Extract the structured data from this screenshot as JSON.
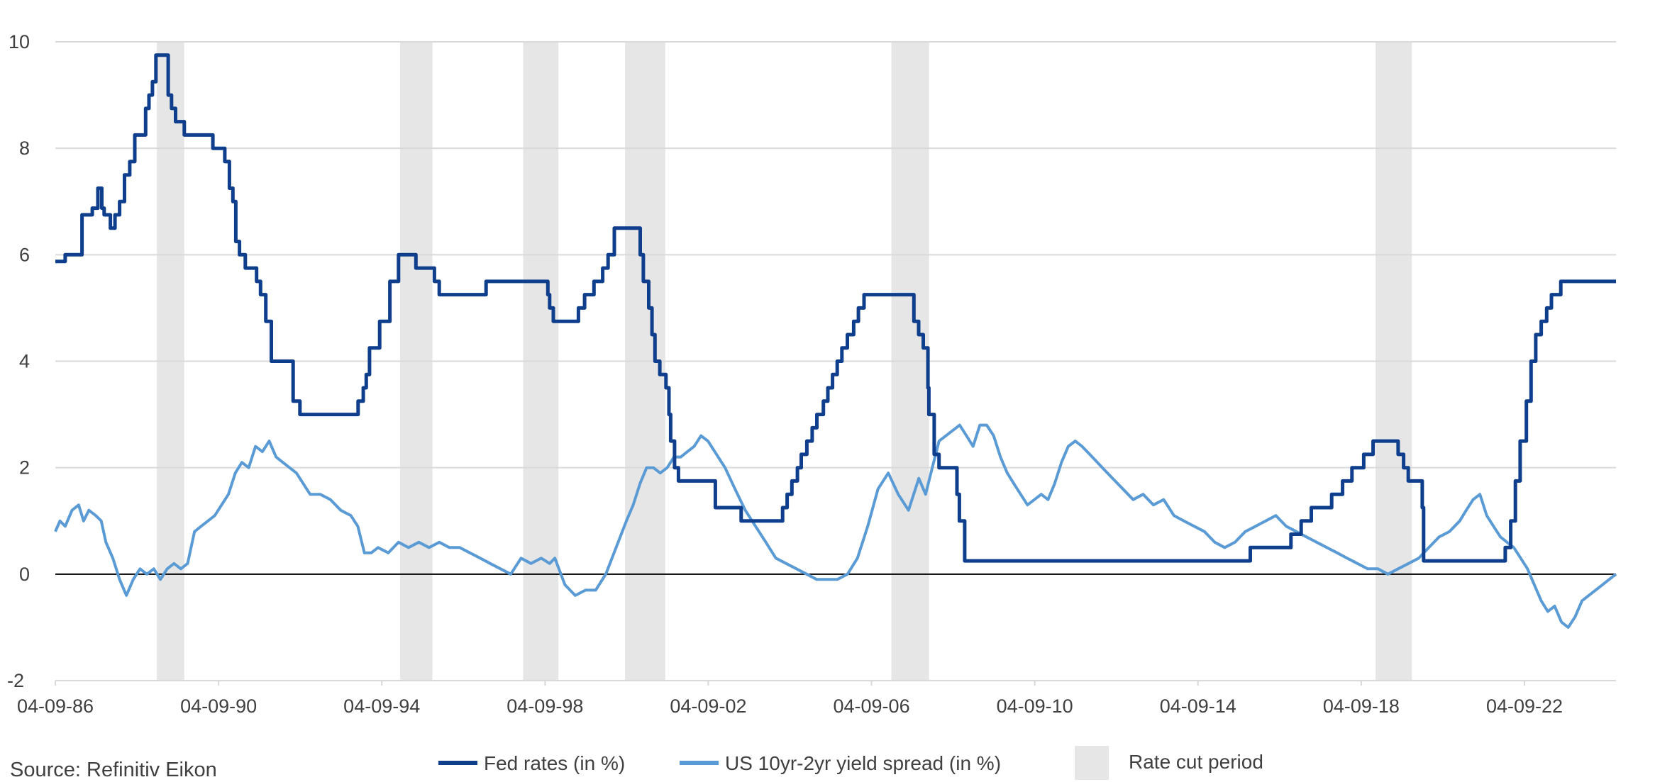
{
  "chart_data": {
    "type": "line",
    "title": "",
    "xlabel": "",
    "ylabel": "",
    "ylim": [
      -2,
      10
    ],
    "yticks": [
      10,
      8,
      6,
      4,
      2,
      0,
      -2
    ],
    "xlim": [
      "1986-09-04",
      "2024-12-01"
    ],
    "xticks": [
      "1986-09-04",
      "1990-09-04",
      "1994-09-04",
      "1998-09-04",
      "2002-09-04",
      "2006-09-04",
      "2010-09-04",
      "2014-09-04",
      "2018-09-04",
      "2022-09-04"
    ],
    "xtick_labels": [
      "04-09-86",
      "04-09-90",
      "04-09-94",
      "04-09-98",
      "04-09-02",
      "04-09-06",
      "04-09-10",
      "04-09-14",
      "04-09-18",
      "04-09-22"
    ],
    "grid": "horizontal",
    "legend_position": "bottom",
    "rate_cut_periods": [
      [
        "1989-03-01",
        "1989-11-01"
      ],
      [
        "1995-02-15",
        "1995-12-01"
      ],
      [
        "1998-02-20",
        "1999-01-01"
      ],
      [
        "2000-08-20",
        "2001-08-15"
      ],
      [
        "2007-03-01",
        "2008-02-01"
      ],
      [
        "2019-01-10",
        "2019-12-01"
      ]
    ],
    "series": [
      {
        "name": "Fed rates (in %)",
        "color": "#0f3f8c",
        "style": "step",
        "x": [
          "1986-09-04",
          "1986-12-01",
          "1987-05-01",
          "1987-08-01",
          "1987-09-20",
          "1987-10-25",
          "1987-11-15",
          "1988-01-10",
          "1988-02-20",
          "1988-04-01",
          "1988-05-15",
          "1988-07-01",
          "1988-08-15",
          "1988-10-01",
          "1988-11-20",
          "1988-12-20",
          "1989-01-20",
          "1989-02-20",
          "1989-03-01",
          "1989-06-10",
          "1989-07-10",
          "1989-08-15",
          "1989-10-15",
          "1989-11-01",
          "1989-12-15",
          "1990-07-15",
          "1990-10-30",
          "1990-12-10",
          "1991-01-10",
          "1991-02-05",
          "1991-03-10",
          "1991-05-01",
          "1991-08-10",
          "1991-09-15",
          "1991-11-01",
          "1991-12-20",
          "1992-07-02",
          "1992-09-01",
          "1994-02-04",
          "1994-03-22",
          "1994-04-18",
          "1994-05-17",
          "1994-08-16",
          "1994-11-15",
          "1995-02-01",
          "1995-07-06",
          "1995-12-19",
          "1996-01-31",
          "1997-03-25",
          "1998-09-29",
          "1998-10-15",
          "1998-11-17",
          "1999-06-30",
          "1999-08-24",
          "1999-11-16",
          "2000-02-02",
          "2000-03-21",
          "2000-05-16",
          "2001-01-03",
          "2001-01-31",
          "2001-03-20",
          "2001-04-18",
          "2001-05-15",
          "2001-06-27",
          "2001-08-21",
          "2001-09-17",
          "2001-10-02",
          "2001-11-06",
          "2001-12-11",
          "2002-11-06",
          "2003-06-25",
          "2004-06-30",
          "2004-08-10",
          "2004-09-21",
          "2004-11-10",
          "2004-12-14",
          "2005-02-02",
          "2005-03-22",
          "2005-05-03",
          "2005-06-30",
          "2005-08-09",
          "2005-09-20",
          "2005-11-01",
          "2005-12-13",
          "2006-01-31",
          "2006-03-28",
          "2006-05-10",
          "2006-06-29",
          "2007-09-18",
          "2007-10-31",
          "2007-12-11",
          "2008-01-22",
          "2008-01-30",
          "2008-03-18",
          "2008-04-30",
          "2008-10-08",
          "2008-10-29",
          "2008-12-16",
          "2015-12-16",
          "2016-12-14",
          "2017-03-15",
          "2017-06-14",
          "2017-12-13",
          "2018-03-21",
          "2018-06-13",
          "2018-09-26",
          "2018-12-19",
          "2019-07-31",
          "2019-09-18",
          "2019-10-30",
          "2020-03-03",
          "2020-03-15",
          "2022-03-16",
          "2022-05-04",
          "2022-06-15",
          "2022-07-27",
          "2022-09-21",
          "2022-11-02",
          "2022-12-14",
          "2023-02-01",
          "2023-03-22",
          "2023-05-03",
          "2023-07-26",
          "2024-12-01"
        ],
        "y": [
          5.875,
          6.0,
          6.75,
          6.875,
          7.25,
          6.875,
          6.75,
          6.5,
          6.75,
          7.0,
          7.5,
          7.75,
          8.25,
          8.25,
          8.75,
          9.0,
          9.25,
          9.75,
          9.75,
          9.0,
          8.75,
          8.5,
          8.5,
          8.25,
          8.25,
          8.0,
          7.75,
          7.25,
          7.0,
          6.25,
          6.0,
          5.75,
          5.5,
          5.25,
          4.75,
          4.0,
          3.25,
          3.0,
          3.25,
          3.5,
          3.75,
          4.25,
          4.75,
          5.5,
          6.0,
          5.75,
          5.5,
          5.25,
          5.5,
          5.25,
          5.0,
          4.75,
          5.0,
          5.25,
          5.5,
          5.75,
          6.0,
          6.5,
          6.0,
          5.5,
          5.0,
          4.5,
          4.0,
          3.75,
          3.5,
          3.0,
          2.5,
          2.0,
          1.75,
          1.25,
          1.0,
          1.25,
          1.5,
          1.75,
          2.0,
          2.25,
          2.5,
          2.75,
          3.0,
          3.25,
          3.5,
          3.75,
          4.0,
          4.25,
          4.5,
          4.75,
          5.0,
          5.25,
          4.75,
          4.5,
          4.25,
          3.5,
          3.0,
          2.25,
          2.0,
          1.5,
          1.0,
          0.25,
          0.5,
          0.75,
          1.0,
          1.25,
          1.5,
          1.75,
          2.0,
          2.25,
          2.5,
          2.25,
          2.0,
          1.75,
          1.25,
          0.25,
          0.5,
          1.0,
          1.75,
          2.5,
          3.25,
          4.0,
          4.5,
          4.75,
          5.0,
          5.25,
          5.5,
          5.5
        ]
      },
      {
        "name": "US 10yr-2yr yield spread (in %)",
        "color": "#5b9bd5",
        "style": "line",
        "x": [
          "1986-09-04",
          "1986-10-15",
          "1986-12-01",
          "1987-02-01",
          "1987-04-01",
          "1987-05-15",
          "1987-07-01",
          "1987-09-01",
          "1987-10-20",
          "1987-12-01",
          "1988-02-01",
          "1988-04-01",
          "1988-06-01",
          "1988-08-01",
          "1988-10-01",
          "1988-12-01",
          "1989-02-01",
          "1989-04-01",
          "1989-06-01",
          "1989-08-01",
          "1989-10-01",
          "1989-12-01",
          "1990-02-01",
          "1990-04-01",
          "1990-06-01",
          "1990-08-01",
          "1990-10-01",
          "1990-12-01",
          "1991-02-01",
          "1991-04-01",
          "1991-06-01",
          "1991-08-01",
          "1991-10-01",
          "1991-12-01",
          "1992-02-01",
          "1992-04-01",
          "1992-06-01",
          "1992-08-01",
          "1992-10-01",
          "1992-12-01",
          "1993-03-01",
          "1993-06-01",
          "1993-09-01",
          "1993-12-01",
          "1994-02-01",
          "1994-04-01",
          "1994-06-01",
          "1994-08-01",
          "1994-11-01",
          "1995-02-01",
          "1995-05-01",
          "1995-08-01",
          "1995-11-01",
          "1996-02-01",
          "1996-05-01",
          "1996-08-01",
          "1996-11-01",
          "1997-02-01",
          "1997-05-01",
          "1997-08-01",
          "1997-11-01",
          "1998-02-01",
          "1998-05-01",
          "1998-08-01",
          "1998-10-15",
          "1998-12-01",
          "1999-03-01",
          "1999-06-01",
          "1999-09-01",
          "1999-12-01",
          "2000-03-01",
          "2000-06-01",
          "2000-09-01",
          "2000-11-01",
          "2001-01-01",
          "2001-03-01",
          "2001-05-01",
          "2001-07-01",
          "2001-09-01",
          "2001-11-01",
          "2002-01-01",
          "2002-03-01",
          "2002-05-01",
          "2002-07-01",
          "2002-09-01",
          "2002-11-01",
          "2003-02-01",
          "2003-05-01",
          "2003-08-01",
          "2003-11-01",
          "2004-02-01",
          "2004-05-01",
          "2004-08-01",
          "2004-11-01",
          "2005-02-01",
          "2005-05-01",
          "2005-08-01",
          "2005-11-01",
          "2006-02-01",
          "2006-05-01",
          "2006-08-01",
          "2006-11-01",
          "2007-02-01",
          "2007-05-01",
          "2007-08-01",
          "2007-11-01",
          "2008-01-01",
          "2008-03-01",
          "2008-05-01",
          "2008-07-01",
          "2008-09-01",
          "2008-11-01",
          "2009-01-01",
          "2009-03-01",
          "2009-05-01",
          "2009-07-01",
          "2009-09-01",
          "2009-11-01",
          "2010-01-01",
          "2010-03-01",
          "2010-05-01",
          "2010-07-01",
          "2010-09-01",
          "2010-11-01",
          "2011-01-01",
          "2011-03-01",
          "2011-05-01",
          "2011-07-01",
          "2011-09-01",
          "2011-11-01",
          "2012-02-01",
          "2012-05-01",
          "2012-08-01",
          "2012-11-01",
          "2013-02-01",
          "2013-05-01",
          "2013-08-01",
          "2013-11-01",
          "2014-02-01",
          "2014-05-01",
          "2014-08-01",
          "2014-11-01",
          "2015-02-01",
          "2015-05-01",
          "2015-08-01",
          "2015-11-01",
          "2016-02-01",
          "2016-05-01",
          "2016-08-01",
          "2016-11-01",
          "2017-02-01",
          "2017-05-01",
          "2017-08-01",
          "2017-11-01",
          "2018-02-01",
          "2018-05-01",
          "2018-08-01",
          "2018-11-01",
          "2019-02-01",
          "2019-05-01",
          "2019-08-01",
          "2019-11-01",
          "2020-02-01",
          "2020-05-01",
          "2020-08-01",
          "2020-11-01",
          "2021-02-01",
          "2021-04-01",
          "2021-06-01",
          "2021-08-01",
          "2021-10-01",
          "2021-12-01",
          "2022-02-01",
          "2022-04-01",
          "2022-06-01",
          "2022-08-01",
          "2022-10-01",
          "2022-12-01",
          "2023-02-01",
          "2023-04-01",
          "2023-06-01",
          "2023-08-01",
          "2023-10-01",
          "2023-12-01",
          "2024-02-01",
          "2024-04-01",
          "2024-06-01",
          "2024-08-01",
          "2024-10-01",
          "2024-12-01"
        ],
        "y": [
          0.8,
          1.0,
          0.9,
          1.2,
          1.3,
          1.0,
          1.2,
          1.1,
          1.0,
          0.6,
          0.3,
          -0.1,
          -0.4,
          -0.1,
          0.1,
          0.0,
          0.1,
          -0.1,
          0.1,
          0.2,
          0.1,
          0.2,
          0.8,
          0.9,
          1.0,
          1.1,
          1.3,
          1.5,
          1.9,
          2.1,
          2.0,
          2.4,
          2.3,
          2.5,
          2.2,
          2.1,
          2.0,
          1.9,
          1.7,
          1.5,
          1.5,
          1.4,
          1.2,
          1.1,
          0.9,
          0.4,
          0.4,
          0.5,
          0.4,
          0.6,
          0.5,
          0.6,
          0.5,
          0.6,
          0.5,
          0.5,
          0.4,
          0.3,
          0.2,
          0.1,
          0.0,
          0.3,
          0.2,
          0.3,
          0.2,
          0.3,
          -0.2,
          -0.4,
          -0.3,
          -0.3,
          0.0,
          0.5,
          1.0,
          1.3,
          1.7,
          2.0,
          2.0,
          1.9,
          2.0,
          2.2,
          2.2,
          2.3,
          2.4,
          2.6,
          2.5,
          2.3,
          2.0,
          1.6,
          1.2,
          0.9,
          0.6,
          0.3,
          0.2,
          0.1,
          0.0,
          -0.1,
          -0.1,
          -0.1,
          0.0,
          0.3,
          0.9,
          1.6,
          1.9,
          1.5,
          1.2,
          1.8,
          1.5,
          2.0,
          2.5,
          2.6,
          2.7,
          2.8,
          2.6,
          2.4,
          2.8,
          2.8,
          2.6,
          2.2,
          1.9,
          1.7,
          1.5,
          1.3,
          1.4,
          1.5,
          1.4,
          1.7,
          2.1,
          2.4,
          2.5,
          2.4,
          2.2,
          2.0,
          1.8,
          1.6,
          1.4,
          1.5,
          1.3,
          1.4,
          1.1,
          1.0,
          0.9,
          0.8,
          0.6,
          0.5,
          0.6,
          0.8,
          0.9,
          1.0,
          1.1,
          0.9,
          0.8,
          0.7,
          0.6,
          0.5,
          0.4,
          0.3,
          0.2,
          0.1,
          0.1,
          0.0,
          0.1,
          0.2,
          0.3,
          0.5,
          0.7,
          0.8,
          1.0,
          1.2,
          1.4,
          1.5,
          1.1,
          0.9,
          0.7,
          0.6,
          0.5,
          0.3,
          0.1,
          -0.2,
          -0.5,
          -0.7,
          -0.6,
          -0.9,
          -1.0,
          -0.8,
          -0.5,
          -0.4,
          -0.3,
          -0.2,
          -0.1,
          0.0
        ]
      }
    ]
  },
  "legend": {
    "fed_label": "Fed rates (in %)",
    "spread_label": "US 10yr-2yr yield spread (in %)",
    "cut_label": "Rate cut period"
  },
  "colors": {
    "fed": "#0f3f8c",
    "spread": "#5b9bd5",
    "cut_band": "#e6e6e6",
    "grid": "#d9d9d9",
    "zero_line": "#000000"
  },
  "source": "Source: Refinitiv Eikon"
}
